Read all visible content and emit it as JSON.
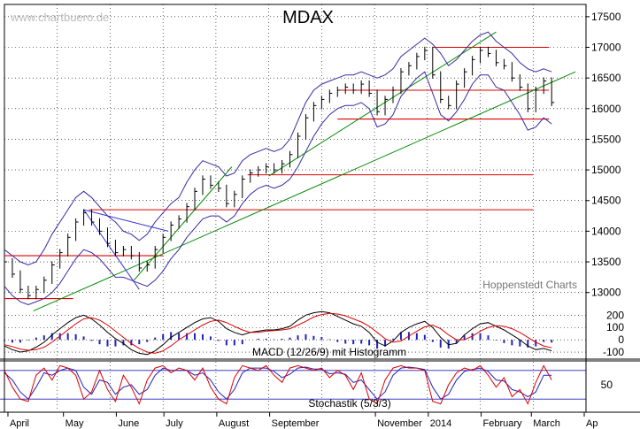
{
  "chart_data": {
    "type": "line",
    "title": "MDAX",
    "watermark": "www.chartbuero.de",
    "credit": "Hoppenstedt Charts",
    "colors": {
      "price": "#000000",
      "bollinger": "#3a2aa0",
      "support": "#dd0000",
      "trend": "#008800",
      "trend_down": "#3333cc",
      "macd": "#000000",
      "signal": "#dd0000",
      "histogram": "#2222bb",
      "stoch_k": "#dd0000",
      "stoch_d": "#2222bb",
      "grid": "#000000"
    },
    "x_axis": {
      "labels": [
        "April",
        "May",
        "June",
        "July",
        "August",
        "September",
        "November",
        "2014",
        "February",
        "March",
        "Ap"
      ],
      "label_positions_month_index": [
        0.1,
        1.15,
        2.15,
        3.05,
        4.05,
        5.05,
        7.05,
        8.05,
        9.05,
        10.0,
        11.0
      ]
    },
    "price_panel": {
      "ylim": [
        12750,
        17700
      ],
      "y_ticks": [
        13000,
        13500,
        14000,
        14500,
        15000,
        15500,
        16000,
        16500,
        17000,
        17500
      ],
      "tick_labels": [
        "13000",
        "13500",
        "14000",
        "14500",
        "15000",
        "15500",
        "16000",
        "16500",
        "17000",
        "17500"
      ],
      "series_months": [
        0.0,
        0.15,
        0.3,
        0.45,
        0.6,
        0.75,
        0.9,
        1.05,
        1.2,
        1.35,
        1.5,
        1.65,
        1.8,
        1.95,
        2.1,
        2.25,
        2.4,
        2.55,
        2.7,
        2.85,
        3.0,
        3.15,
        3.3,
        3.45,
        3.6,
        3.75,
        3.9,
        4.05,
        4.2,
        4.35,
        4.5,
        4.65,
        4.8,
        4.95,
        5.1,
        5.25,
        5.4,
        5.55,
        5.7,
        5.85,
        6.0,
        6.15,
        6.3,
        6.45,
        6.6,
        6.75,
        6.9,
        7.05,
        7.2,
        7.35,
        7.5,
        7.65,
        7.8,
        7.95,
        8.1,
        8.25,
        8.4,
        8.55,
        8.7,
        8.85,
        9.0,
        9.15,
        9.3,
        9.45,
        9.6,
        9.75,
        9.9,
        10.05,
        10.2,
        10.35
      ],
      "close": [
        13500,
        13300,
        13050,
        12950,
        13050,
        13200,
        13450,
        13650,
        13900,
        14150,
        14300,
        14150,
        14000,
        13800,
        13650,
        13700,
        13600,
        13400,
        13450,
        13700,
        13900,
        14100,
        14200,
        14400,
        14650,
        14850,
        14750,
        14700,
        14450,
        14600,
        14850,
        14950,
        15000,
        15050,
        15000,
        15100,
        15250,
        15550,
        15850,
        16050,
        16150,
        16250,
        16300,
        16350,
        16300,
        16400,
        16250,
        15950,
        16150,
        16300,
        16600,
        16700,
        16850,
        16950,
        16550,
        16150,
        16050,
        16400,
        16600,
        16800,
        16950,
        16900,
        16750,
        16700,
        16500,
        16350,
        16000,
        16300,
        16450,
        16100
      ],
      "bollinger_upper": [
        13700,
        13600,
        13500,
        13450,
        13500,
        13700,
        13950,
        14150,
        14350,
        14550,
        14650,
        14550,
        14400,
        14250,
        14150,
        14000,
        13950,
        13850,
        13950,
        14150,
        14300,
        14450,
        14550,
        14800,
        15000,
        15150,
        15100,
        15050,
        14900,
        14950,
        15150,
        15250,
        15300,
        15350,
        15300,
        15350,
        15500,
        15800,
        16100,
        16300,
        16400,
        16450,
        16500,
        16550,
        16550,
        16600,
        16550,
        16500,
        16550,
        16650,
        16850,
        16950,
        17050,
        17150,
        17050,
        16900,
        16700,
        16800,
        16950,
        17100,
        17200,
        17250,
        17100,
        17000,
        16900,
        16750,
        16650,
        16600,
        16650,
        16600
      ],
      "bollinger_lower": [
        13100,
        12950,
        12850,
        12800,
        12850,
        12900,
        13000,
        13150,
        13350,
        13550,
        13700,
        13650,
        13550,
        13400,
        13250,
        13250,
        13200,
        13150,
        13100,
        13200,
        13350,
        13550,
        13700,
        13900,
        14050,
        14200,
        14250,
        14250,
        14150,
        14250,
        14450,
        14600,
        14700,
        14750,
        14700,
        14750,
        14850,
        15050,
        15300,
        15550,
        15750,
        15900,
        16000,
        16050,
        16050,
        16100,
        16000,
        15700,
        15750,
        15900,
        16200,
        16350,
        16500,
        16600,
        16250,
        15900,
        15800,
        15950,
        16150,
        16400,
        16550,
        16550,
        16350,
        16300,
        16100,
        15900,
        15650,
        15700,
        15850,
        15750
      ],
      "support_lines": [
        {
          "y": 13600,
          "x0": 0.0,
          "x1": 3.0
        },
        {
          "y": 12900,
          "x0": 0.0,
          "x1": 1.3
        },
        {
          "y": 14350,
          "x0": 1.6,
          "x1": 10.0
        },
        {
          "y": 14920,
          "x0": 4.6,
          "x1": 10.0
        },
        {
          "y": 16300,
          "x0": 6.3,
          "x1": 10.3
        },
        {
          "y": 15830,
          "x0": 6.3,
          "x1": 10.3
        },
        {
          "y": 17000,
          "x0": 8.1,
          "x1": 10.3
        }
      ],
      "trend_lines": [
        {
          "x0": 0.55,
          "y0": 12700,
          "x1": 10.8,
          "y1": 16600
        },
        {
          "x0": 2.45,
          "y0": 13200,
          "x1": 4.3,
          "y1": 15050
        },
        {
          "x0": 5.0,
          "y0": 14900,
          "x1": 9.3,
          "y1": 17250
        }
      ],
      "down_lines": [
        {
          "x0": 1.5,
          "y0": 14350,
          "x1": 2.55,
          "y1": 13050
        },
        {
          "x0": 1.5,
          "y0": 14350,
          "x1": 3.1,
          "y1": 14000
        }
      ]
    },
    "macd_panel": {
      "label": "MACD (12/26/9) mit Histogramm",
      "ylim": [
        -150,
        260
      ],
      "y_ticks": [
        -100,
        0,
        100,
        200
      ],
      "tick_labels": [
        "-100",
        "0",
        "100",
        "200"
      ],
      "macd": [
        -50,
        -80,
        -100,
        -90,
        -60,
        -20,
        40,
        90,
        140,
        180,
        200,
        170,
        120,
        60,
        10,
        -30,
        -80,
        -110,
        -120,
        -90,
        -40,
        20,
        60,
        100,
        140,
        170,
        180,
        150,
        90,
        60,
        40,
        60,
        70,
        80,
        80,
        90,
        110,
        160,
        200,
        220,
        230,
        220,
        190,
        160,
        130,
        110,
        60,
        -20,
        -50,
        -10,
        60,
        100,
        130,
        150,
        100,
        20,
        -40,
        -30,
        40,
        90,
        130,
        140,
        110,
        80,
        40,
        0,
        -50,
        -80,
        -70,
        -90
      ],
      "signal": [
        -40,
        -55,
        -75,
        -85,
        -80,
        -60,
        -20,
        30,
        80,
        130,
        170,
        180,
        160,
        120,
        70,
        20,
        -30,
        -70,
        -100,
        -110,
        -90,
        -50,
        0,
        40,
        80,
        120,
        150,
        160,
        140,
        110,
        80,
        60,
        60,
        70,
        75,
        80,
        90,
        120,
        150,
        185,
        205,
        215,
        210,
        195,
        170,
        145,
        110,
        60,
        10,
        -20,
        -10,
        30,
        70,
        105,
        120,
        90,
        40,
        0,
        0,
        30,
        70,
        100,
        115,
        110,
        90,
        60,
        20,
        -20,
        -50,
        -65
      ]
    },
    "stoch_panel": {
      "label": "Stochastik (5/3/3)",
      "ylim": [
        0,
        100
      ],
      "y_ticks": [
        50
      ],
      "tick_labels": [
        "50"
      ],
      "levels": [
        20,
        80
      ],
      "k": [
        80,
        45,
        20,
        15,
        70,
        85,
        60,
        90,
        85,
        70,
        20,
        35,
        80,
        40,
        15,
        70,
        45,
        10,
        60,
        85,
        90,
        75,
        85,
        80,
        60,
        85,
        45,
        20,
        10,
        65,
        90,
        85,
        80,
        90,
        70,
        55,
        85,
        90,
        85,
        80,
        85,
        65,
        80,
        70,
        40,
        75,
        20,
        10,
        60,
        85,
        90,
        85,
        85,
        80,
        15,
        10,
        50,
        75,
        85,
        80,
        90,
        70,
        45,
        65,
        25,
        40,
        10,
        55,
        90,
        60
      ],
      "d": [
        75,
        60,
        35,
        20,
        45,
        75,
        70,
        80,
        85,
        80,
        45,
        30,
        60,
        55,
        30,
        45,
        50,
        30,
        40,
        70,
        85,
        80,
        80,
        80,
        70,
        75,
        60,
        35,
        20,
        40,
        75,
        85,
        85,
        85,
        78,
        65,
        72,
        85,
        87,
        83,
        83,
        73,
        75,
        72,
        55,
        60,
        40,
        20,
        35,
        70,
        85,
        87,
        85,
        82,
        45,
        20,
        30,
        60,
        78,
        82,
        85,
        78,
        60,
        58,
        40,
        35,
        25,
        35,
        70,
        70
      ]
    }
  }
}
